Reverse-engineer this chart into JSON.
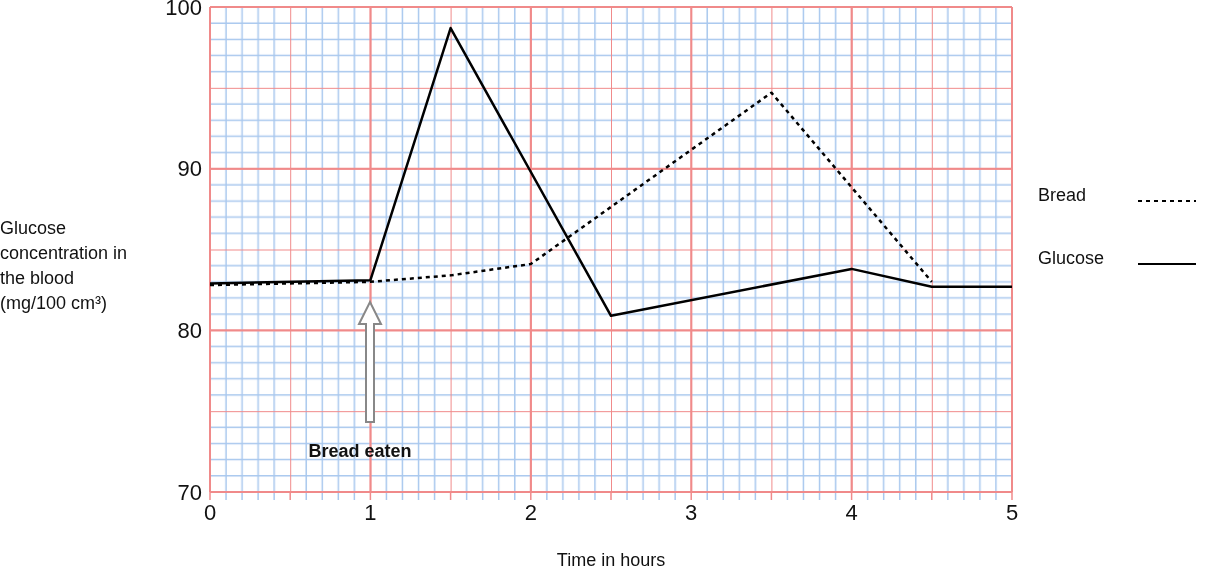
{
  "chart_data": {
    "type": "line",
    "xlabel": "Time in hours",
    "ylabel": "Glucose concentration in the blood (mg/100 cm³)",
    "xlim": [
      0,
      5
    ],
    "xticks": [
      0,
      1,
      2,
      3,
      4,
      5
    ],
    "ylim": [
      70,
      100
    ],
    "yticks": [
      70,
      80,
      90,
      100
    ],
    "grid": true,
    "legend": "right",
    "series": [
      {
        "name": "Bread",
        "color": "#000000",
        "line_style": "dotted",
        "x": [
          0,
          1,
          1.5,
          2,
          3.5,
          4.5
        ],
        "values": [
          82.8,
          83.0,
          83.4,
          84.1,
          94.7,
          83.0
        ]
      },
      {
        "name": "Glucose",
        "color": "#000000",
        "line_style": "solid",
        "x": [
          0,
          1,
          1.5,
          2.5,
          4,
          4.5,
          5
        ],
        "values": [
          82.9,
          83.1,
          98.7,
          80.9,
          83.8,
          82.7,
          82.7
        ]
      }
    ],
    "annotations": [
      "Bread eaten"
    ]
  }
}
